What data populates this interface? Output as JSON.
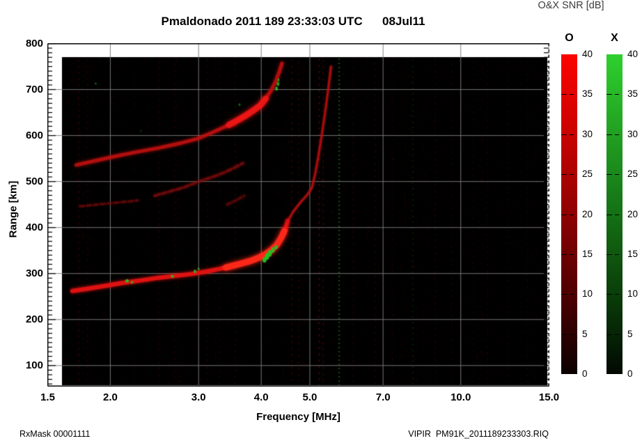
{
  "header": {
    "title": "Pmaldonado 2011 189 23:33:03 UTC",
    "date": "08Jul11",
    "colorbar_title": "O&X SNR [dB]"
  },
  "footer": {
    "left": "RxMask 00001111",
    "right": "VIPIR  PM91K_2011189233303.RIQ"
  },
  "chart_data": {
    "type": "heatmap",
    "title": "Pmaldonado 2011 189 23:33:03 UTC 08Jul11",
    "description": "Ionogram: echo power (O and X polarization SNR in dB) vs sounding frequency and virtual range",
    "x_axis": {
      "label": "Frequency [MHz]",
      "scale": "log",
      "range": [
        1.5,
        15
      ],
      "ticks": [
        1.5,
        2,
        3,
        4,
        5,
        7,
        10,
        15
      ],
      "tick_labels": [
        "1.5",
        "2.0",
        "3.0",
        "4.0",
        "5.0",
        "7.0",
        "10.0",
        "15.0"
      ],
      "gridlines": [
        2,
        3,
        4,
        5,
        7,
        10
      ]
    },
    "y_axis": {
      "label": "Range [km]",
      "range": [
        55,
        800
      ],
      "major_ticks": [
        800,
        700,
        600,
        500,
        400,
        300,
        200,
        100
      ],
      "tick_labels": [
        "800",
        "700",
        "600",
        "500",
        "400",
        "300",
        "200",
        "100"
      ],
      "minor_step": 10,
      "gridlines": [
        700,
        600,
        500,
        400,
        300,
        200,
        100
      ]
    },
    "colorbars": [
      {
        "name": "O",
        "min": 0,
        "max": 40,
        "tick_step": 5,
        "tick_labels": [
          "40",
          "35",
          "30",
          "25",
          "20",
          "15",
          "10",
          "5",
          "0"
        ],
        "top_color": "#fb0400",
        "bottom_color": "#000000"
      },
      {
        "name": "X",
        "min": 0,
        "max": 40,
        "tick_step": 5,
        "tick_labels": [
          "40",
          "35",
          "30",
          "25",
          "20",
          "15",
          "10",
          "5",
          "0"
        ],
        "top_color": "#2ed02e",
        "bottom_color": "#000000"
      }
    ],
    "background": "#000000",
    "grid_color": "#7d7d7d",
    "traces": [
      {
        "name": "F2-one-hop-O",
        "color": "#e41212",
        "width": 6,
        "alpha": 0.92,
        "blur": 5,
        "dash": [],
        "points": [
          [
            1.68,
            262
          ],
          [
            1.8,
            267
          ],
          [
            1.95,
            273
          ],
          [
            2.1,
            279
          ],
          [
            2.3,
            285
          ],
          [
            2.5,
            291
          ],
          [
            2.7,
            295
          ],
          [
            2.9,
            299
          ],
          [
            3.1,
            304
          ],
          [
            3.3,
            310
          ],
          [
            3.5,
            317
          ],
          [
            3.7,
            324
          ],
          [
            3.85,
            330
          ],
          [
            4.0,
            338
          ],
          [
            4.12,
            345
          ],
          [
            4.22,
            354
          ],
          [
            4.32,
            366
          ],
          [
            4.4,
            380
          ],
          [
            4.47,
            398
          ],
          [
            4.52,
            415
          ]
        ]
      },
      {
        "name": "F2-one-hop-O-bright",
        "color": "#ff2a1a",
        "width": 9,
        "alpha": 0.85,
        "blur": 7,
        "dash": [],
        "points": [
          [
            3.4,
            313
          ],
          [
            3.6,
            320
          ],
          [
            3.8,
            327
          ],
          [
            3.95,
            334
          ],
          [
            4.08,
            342
          ],
          [
            4.2,
            352
          ],
          [
            4.3,
            363
          ],
          [
            4.38,
            377
          ],
          [
            4.45,
            393
          ]
        ]
      },
      {
        "name": "F2-one-hop-asymptote",
        "color": "#c01010",
        "width": 3,
        "alpha": 0.75,
        "blur": 3,
        "dash": [],
        "points": [
          [
            4.52,
            415
          ],
          [
            4.65,
            437
          ],
          [
            4.8,
            456
          ],
          [
            4.95,
            472
          ],
          [
            5.05,
            487
          ],
          [
            5.12,
            515
          ],
          [
            5.2,
            555
          ],
          [
            5.28,
            600
          ],
          [
            5.36,
            648
          ],
          [
            5.44,
            700
          ],
          [
            5.51,
            750
          ]
        ]
      },
      {
        "name": "F2-two-hop-O",
        "color": "#c41010",
        "width": 5,
        "alpha": 0.8,
        "blur": 5,
        "dash": [],
        "points": [
          [
            1.71,
            536
          ],
          [
            1.88,
            546
          ],
          [
            2.05,
            555
          ],
          [
            2.25,
            564
          ],
          [
            2.5,
            573
          ],
          [
            2.75,
            583
          ],
          [
            3.0,
            594
          ],
          [
            3.2,
            607
          ],
          [
            3.4,
            620
          ],
          [
            3.6,
            634
          ],
          [
            3.8,
            650
          ],
          [
            3.95,
            663
          ],
          [
            4.08,
            680
          ],
          [
            4.18,
            697
          ],
          [
            4.27,
            717
          ],
          [
            4.34,
            737
          ],
          [
            4.4,
            757
          ]
        ]
      },
      {
        "name": "F2-two-hop-bright",
        "color": "#f21616",
        "width": 9,
        "alpha": 0.8,
        "blur": 7,
        "dash": [],
        "points": [
          [
            3.45,
            623
          ],
          [
            3.6,
            634
          ],
          [
            3.72,
            643
          ],
          [
            3.85,
            654
          ],
          [
            3.98,
            665
          ],
          [
            4.08,
            680
          ]
        ]
      },
      {
        "name": "mid-echo-faint",
        "color": "#8f0d0d",
        "width": 4,
        "alpha": 0.6,
        "blur": 4,
        "dash": [
          7,
          4
        ],
        "points": [
          [
            2.45,
            469
          ],
          [
            2.62,
            478
          ],
          [
            2.8,
            487
          ],
          [
            3.0,
            500
          ],
          [
            3.18,
            509
          ],
          [
            3.35,
            518
          ],
          [
            3.52,
            529
          ],
          [
            3.68,
            540
          ]
        ]
      },
      {
        "name": "left-faint-echo",
        "color": "#7a0b0b",
        "width": 3.5,
        "alpha": 0.55,
        "blur": 3,
        "dash": [
          6,
          4
        ],
        "points": [
          [
            1.74,
            446
          ],
          [
            1.92,
            451
          ],
          [
            2.1,
            455
          ],
          [
            2.27,
            459
          ]
        ]
      },
      {
        "name": "mid-faint-patch",
        "color": "#7a0b0b",
        "width": 4,
        "alpha": 0.5,
        "blur": 4,
        "dash": [
          5,
          4
        ],
        "points": [
          [
            3.42,
            450
          ],
          [
            3.56,
            459
          ],
          [
            3.7,
            469
          ]
        ]
      }
    ],
    "x_mode_patches": [
      [
        2.16,
        284,
        2.5,
        2.5,
        0.9
      ],
      [
        2.21,
        281,
        2,
        2,
        0.7
      ],
      [
        2.66,
        294,
        2.5,
        2,
        0.85
      ],
      [
        2.95,
        305,
        2,
        2.5,
        0.85
      ],
      [
        3.0,
        310,
        1.5,
        2,
        0.7
      ],
      [
        4.06,
        330,
        3,
        4,
        0.95
      ],
      [
        4.11,
        337,
        3,
        5,
        0.95
      ],
      [
        4.16,
        344,
        3,
        5,
        0.92
      ],
      [
        4.22,
        351,
        2.5,
        4,
        0.9
      ],
      [
        4.28,
        357,
        2.5,
        3,
        0.85
      ],
      [
        4.29,
        702,
        2,
        3,
        0.85
      ],
      [
        4.32,
        712,
        2,
        3,
        0.8
      ],
      [
        4.33,
        721,
        1.5,
        2.5,
        0.7
      ],
      [
        1.87,
        713,
        1.5,
        1.5,
        0.45
      ],
      [
        3.62,
        667,
        1.5,
        2,
        0.5
      ],
      [
        2.3,
        610,
        1.2,
        1.2,
        0.3
      ]
    ],
    "rfi_green_lines": [
      {
        "f": 5.72,
        "alpha": 0.6,
        "width": 2,
        "dash": [
          2,
          4
        ],
        "color": "#1d8f1d"
      },
      {
        "f": 8.02,
        "alpha": 0.3,
        "width": 2,
        "dash": [
          2,
          6
        ],
        "color": "#156315"
      }
    ],
    "rfi_red_columns": [
      [
        1.73,
        0.18
      ],
      [
        1.8,
        0.14
      ],
      [
        2.5,
        0.15
      ],
      [
        2.69,
        0.13
      ],
      [
        3.12,
        0.14
      ],
      [
        3.3,
        0.12
      ],
      [
        3.55,
        0.16
      ],
      [
        4.6,
        0.22
      ],
      [
        4.75,
        0.18
      ],
      [
        5.22,
        0.32
      ],
      [
        5.32,
        0.22
      ],
      [
        6.1,
        0.12
      ],
      [
        6.75,
        0.16
      ],
      [
        7.3,
        0.1
      ],
      [
        8.9,
        0.14
      ],
      [
        9.6,
        0.12
      ],
      [
        10.6,
        0.1
      ],
      [
        11.3,
        0.12
      ],
      [
        12.4,
        0.1
      ],
      [
        13.6,
        0.1
      ]
    ]
  }
}
